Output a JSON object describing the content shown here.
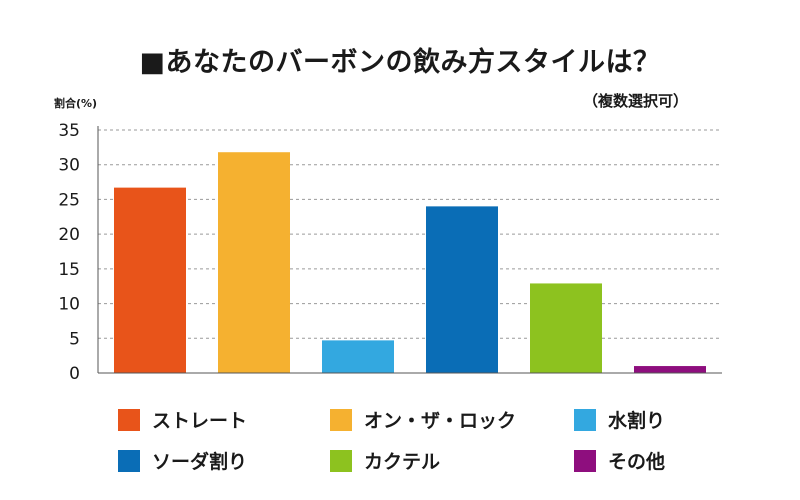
{
  "chart_data": {
    "type": "bar",
    "title": "■あなたのバーボンの飲み方スタイルは？",
    "subtitle": "（複数選択可）",
    "ylabel": "割合(%)",
    "xlabel": "",
    "ylim": [
      0,
      35
    ],
    "yticks": [
      0,
      5,
      10,
      15,
      20,
      25,
      30,
      35
    ],
    "grid": true,
    "legend_position": "bottom",
    "categories": [
      "ストレート",
      "オン・ザ・ロック",
      "水割り",
      "ソーダ割り",
      "カクテル",
      "その他"
    ],
    "values": [
      26.7,
      31.8,
      4.7,
      24.0,
      12.9,
      1.0
    ],
    "colors": [
      "#e8541a",
      "#f5b130",
      "#33a8e0",
      "#0a6db6",
      "#8dc21f",
      "#8e0e7e"
    ]
  }
}
